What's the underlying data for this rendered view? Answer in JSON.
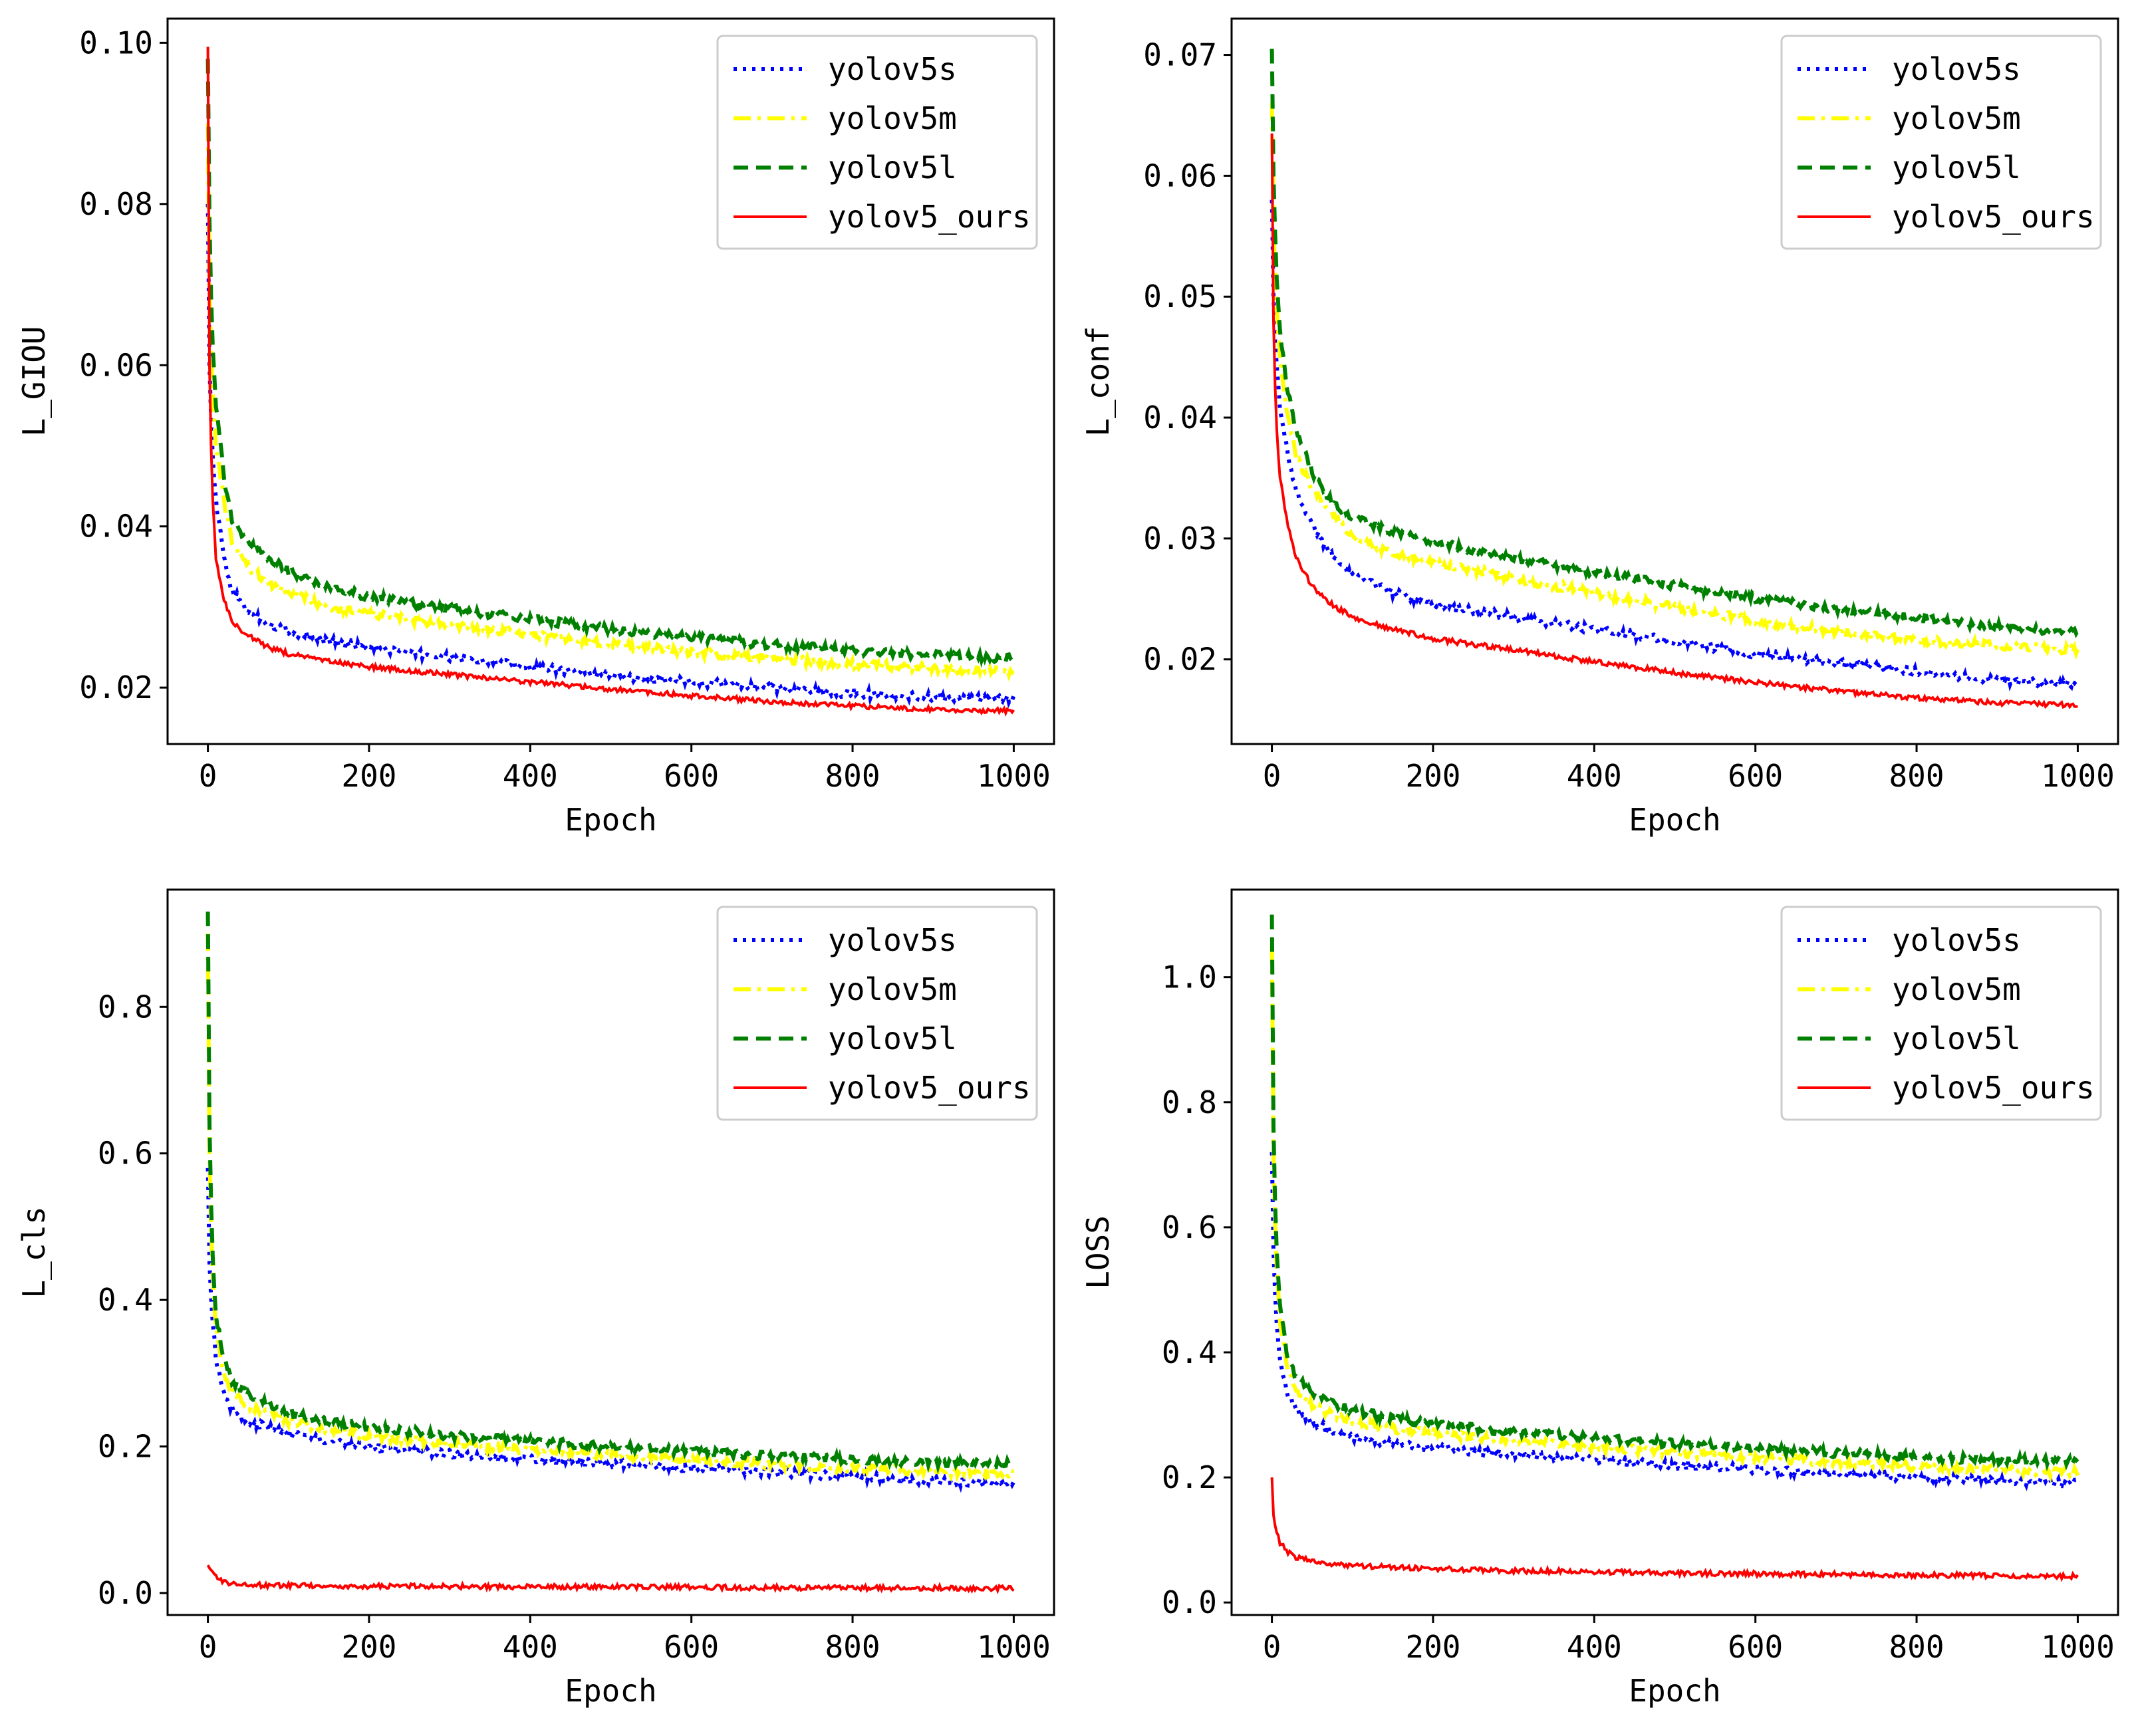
{
  "legend_labels": [
    "yolov5s",
    "yolov5m",
    "yolov5l",
    "yolov5_ours"
  ],
  "colors": {
    "yolov5s": "#0000ff",
    "yolov5m": "#ffff00",
    "yolov5l": "#008000",
    "yolov5_ours": "#ff0000"
  },
  "chart_data": [
    {
      "type": "line",
      "xlabel": "Epoch",
      "ylabel": "L_GIOU",
      "xlim": [
        -50,
        1050
      ],
      "ylim": [
        0.013,
        0.103
      ],
      "xticks": [
        0,
        200,
        400,
        600,
        800,
        1000
      ],
      "xtick_labels": [
        "0",
        "200",
        "400",
        "600",
        "800",
        "1000"
      ],
      "yticks": [
        0.02,
        0.04,
        0.06,
        0.08,
        0.1
      ],
      "ytick_labels": [
        "0.02",
        "0.04",
        "0.06",
        "0.08",
        "0.10"
      ],
      "grid": false,
      "legend": "top-right",
      "x": [
        0,
        2,
        5,
        10,
        20,
        30,
        50,
        75,
        100,
        150,
        200,
        300,
        400,
        500,
        600,
        700,
        800,
        900,
        1000
      ],
      "series": [
        {
          "name": "yolov5s",
          "style": "dotted",
          "values": [
            0.08,
            0.06,
            0.05,
            0.043,
            0.036,
            0.032,
            0.0295,
            0.028,
            0.027,
            0.0258,
            0.025,
            0.0237,
            0.0226,
            0.0215,
            0.0207,
            0.0199,
            0.0193,
            0.0188,
            0.0185
          ]
        },
        {
          "name": "yolov5m",
          "style": "dashdot",
          "values": [
            0.09,
            0.07,
            0.058,
            0.05,
            0.043,
            0.038,
            0.035,
            0.033,
            0.0318,
            0.03,
            0.0292,
            0.0277,
            0.0265,
            0.0254,
            0.0244,
            0.0236,
            0.0229,
            0.0224,
            0.022
          ]
        },
        {
          "name": "yolov5l",
          "style": "dashed",
          "values": [
            0.098,
            0.078,
            0.064,
            0.055,
            0.046,
            0.041,
            0.038,
            0.036,
            0.0345,
            0.0325,
            0.0313,
            0.0298,
            0.0285,
            0.0272,
            0.0262,
            0.0253,
            0.0246,
            0.024,
            0.0236
          ]
        },
        {
          "name": "yolov5_ours",
          "style": "solid",
          "values": [
            0.0995,
            0.06,
            0.045,
            0.036,
            0.031,
            0.028,
            0.0265,
            0.025,
            0.0242,
            0.0232,
            0.0226,
            0.0216,
            0.0207,
            0.0198,
            0.019,
            0.0183,
            0.0177,
            0.0173,
            0.0171
          ]
        }
      ]
    },
    {
      "type": "line",
      "xlabel": "Epoch",
      "ylabel": "L_conf",
      "xlim": [
        -50,
        1050
      ],
      "ylim": [
        0.013,
        0.073
      ],
      "xticks": [
        0,
        200,
        400,
        600,
        800,
        1000
      ],
      "xtick_labels": [
        "0",
        "200",
        "400",
        "600",
        "800",
        "1000"
      ],
      "yticks": [
        0.02,
        0.03,
        0.04,
        0.05,
        0.06,
        0.07
      ],
      "ytick_labels": [
        "0.02",
        "0.03",
        "0.04",
        "0.05",
        "0.06",
        "0.07"
      ],
      "grid": false,
      "legend": "top-right",
      "x": [
        0,
        2,
        5,
        10,
        20,
        30,
        50,
        75,
        100,
        150,
        200,
        300,
        400,
        500,
        600,
        700,
        800,
        900,
        1000
      ],
      "series": [
        {
          "name": "yolov5s",
          "style": "dotted",
          "values": [
            0.058,
            0.05,
            0.045,
            0.041,
            0.037,
            0.034,
            0.031,
            0.0285,
            0.027,
            0.0255,
            0.0245,
            0.0235,
            0.0225,
            0.0215,
            0.0205,
            0.0197,
            0.019,
            0.0183,
            0.0179
          ]
        },
        {
          "name": "yolov5m",
          "style": "dashdot",
          "values": [
            0.066,
            0.056,
            0.05,
            0.045,
            0.04,
            0.037,
            0.034,
            0.032,
            0.03,
            0.0288,
            0.028,
            0.0267,
            0.0255,
            0.0243,
            0.0232,
            0.0223,
            0.0216,
            0.0211,
            0.0208
          ]
        },
        {
          "name": "yolov5l",
          "style": "dashed",
          "values": [
            0.0705,
            0.06,
            0.053,
            0.047,
            0.042,
            0.039,
            0.0355,
            0.033,
            0.0318,
            0.0305,
            0.0297,
            0.0284,
            0.0272,
            0.0261,
            0.0251,
            0.0242,
            0.0234,
            0.0227,
            0.0222
          ]
        },
        {
          "name": "yolov5_ours",
          "style": "solid",
          "values": [
            0.0635,
            0.048,
            0.04,
            0.035,
            0.031,
            0.0285,
            0.026,
            0.0245,
            0.0235,
            0.0225,
            0.0217,
            0.0208,
            0.0198,
            0.0189,
            0.0181,
            0.0174,
            0.0168,
            0.0164,
            0.0162
          ]
        }
      ]
    },
    {
      "type": "line",
      "xlabel": "Epoch",
      "ylabel": "L_cls",
      "xlim": [
        -50,
        1050
      ],
      "ylim": [
        -0.03,
        0.96
      ],
      "xticks": [
        0,
        200,
        400,
        600,
        800,
        1000
      ],
      "xtick_labels": [
        "0",
        "200",
        "400",
        "600",
        "800",
        "1000"
      ],
      "yticks": [
        0.0,
        0.2,
        0.4,
        0.6,
        0.8
      ],
      "ytick_labels": [
        "0.0",
        "0.2",
        "0.4",
        "0.6",
        "0.8"
      ],
      "grid": false,
      "legend": "top-right",
      "x": [
        0,
        2,
        5,
        10,
        20,
        30,
        50,
        75,
        100,
        150,
        200,
        300,
        400,
        500,
        600,
        700,
        800,
        900,
        1000
      ],
      "series": [
        {
          "name": "yolov5s",
          "style": "dotted",
          "values": [
            0.58,
            0.45,
            0.38,
            0.32,
            0.27,
            0.25,
            0.235,
            0.225,
            0.218,
            0.208,
            0.2,
            0.19,
            0.183,
            0.177,
            0.171,
            0.165,
            0.159,
            0.153,
            0.149
          ]
        },
        {
          "name": "yolov5m",
          "style": "dashdot",
          "values": [
            0.9,
            0.6,
            0.45,
            0.36,
            0.3,
            0.275,
            0.256,
            0.245,
            0.235,
            0.223,
            0.215,
            0.203,
            0.195,
            0.188,
            0.181,
            0.175,
            0.17,
            0.166,
            0.163
          ]
        },
        {
          "name": "yolov5l",
          "style": "dashed",
          "values": [
            0.93,
            0.64,
            0.48,
            0.38,
            0.32,
            0.29,
            0.27,
            0.258,
            0.247,
            0.235,
            0.226,
            0.215,
            0.207,
            0.2,
            0.193,
            0.187,
            0.182,
            0.178,
            0.176
          ]
        },
        {
          "name": "yolov5_ours",
          "style": "solid",
          "values": [
            0.038,
            0.034,
            0.03,
            0.022,
            0.015,
            0.012,
            0.011,
            0.0105,
            0.0102,
            0.0098,
            0.0095,
            0.009,
            0.0086,
            0.0082,
            0.0078,
            0.0074,
            0.0071,
            0.0068,
            0.0066
          ]
        }
      ]
    },
    {
      "type": "line",
      "xlabel": "Epoch",
      "ylabel": "LOSS",
      "xlim": [
        -50,
        1050
      ],
      "ylim": [
        -0.02,
        1.14
      ],
      "xticks": [
        0,
        200,
        400,
        600,
        800,
        1000
      ],
      "xtick_labels": [
        "0",
        "200",
        "400",
        "600",
        "800",
        "1000"
      ],
      "yticks": [
        0.0,
        0.2,
        0.4,
        0.6,
        0.8,
        1.0
      ],
      "ytick_labels": [
        "0.0",
        "0.2",
        "0.4",
        "0.6",
        "0.8",
        "1.0"
      ],
      "grid": false,
      "legend": "top-right",
      "x": [
        0,
        2,
        5,
        10,
        20,
        30,
        50,
        75,
        100,
        150,
        200,
        300,
        400,
        500,
        600,
        700,
        800,
        900,
        1000
      ],
      "series": [
        {
          "name": "yolov5s",
          "style": "dotted",
          "values": [
            0.72,
            0.56,
            0.46,
            0.39,
            0.33,
            0.31,
            0.29,
            0.275,
            0.265,
            0.255,
            0.248,
            0.238,
            0.228,
            0.22,
            0.213,
            0.206,
            0.2,
            0.195,
            0.192
          ]
        },
        {
          "name": "yolov5m",
          "style": "dashdot",
          "values": [
            1.05,
            0.72,
            0.55,
            0.45,
            0.37,
            0.34,
            0.315,
            0.3,
            0.29,
            0.278,
            0.27,
            0.258,
            0.248,
            0.24,
            0.232,
            0.225,
            0.218,
            0.212,
            0.208
          ]
        },
        {
          "name": "yolov5l",
          "style": "dashed",
          "values": [
            1.1,
            0.76,
            0.58,
            0.47,
            0.39,
            0.36,
            0.335,
            0.318,
            0.307,
            0.294,
            0.285,
            0.273,
            0.263,
            0.254,
            0.246,
            0.239,
            0.233,
            0.228,
            0.226
          ]
        },
        {
          "name": "yolov5_ours",
          "style": "solid",
          "values": [
            0.2,
            0.14,
            0.115,
            0.095,
            0.08,
            0.072,
            0.066,
            0.062,
            0.059,
            0.056,
            0.054,
            0.051,
            0.049,
            0.047,
            0.046,
            0.045,
            0.044,
            0.043,
            0.042
          ]
        }
      ]
    }
  ]
}
